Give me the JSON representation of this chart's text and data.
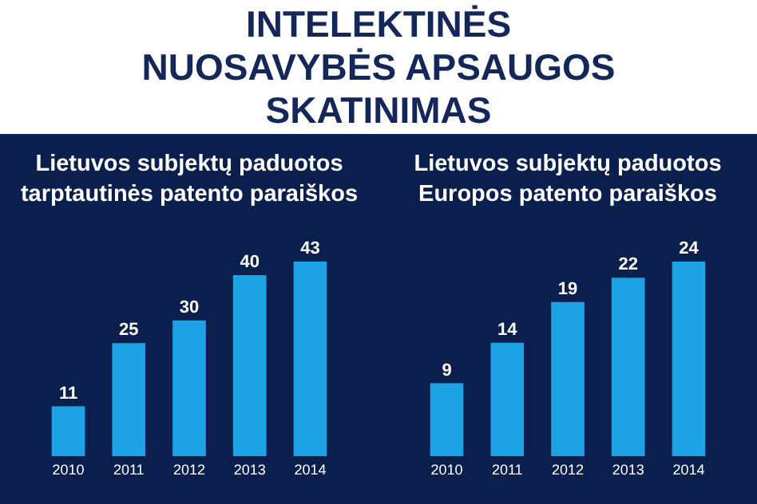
{
  "chart_data": [
    {
      "type": "other",
      "title": "INTELEKTINĖS NUOSAVYBĖS APSAUGOS SKATINIMAS"
    },
    {
      "type": "bar",
      "title": "Lietuvos subjektų paduotos tarptautinės patento paraiškos",
      "categories": [
        "2010",
        "2011",
        "2012",
        "2013",
        "2014"
      ],
      "values": [
        11,
        25,
        30,
        40,
        43
      ],
      "color": "#1ea2e6",
      "data_labels": true
    },
    {
      "type": "bar",
      "title": "Lietuvos subjektų paduotos Europos patento paraiškos",
      "categories": [
        "2010",
        "2011",
        "2012",
        "2013",
        "2014"
      ],
      "values": [
        9,
        14,
        19,
        22,
        24
      ],
      "color": "#1ea2e6",
      "data_labels": true
    }
  ]
}
